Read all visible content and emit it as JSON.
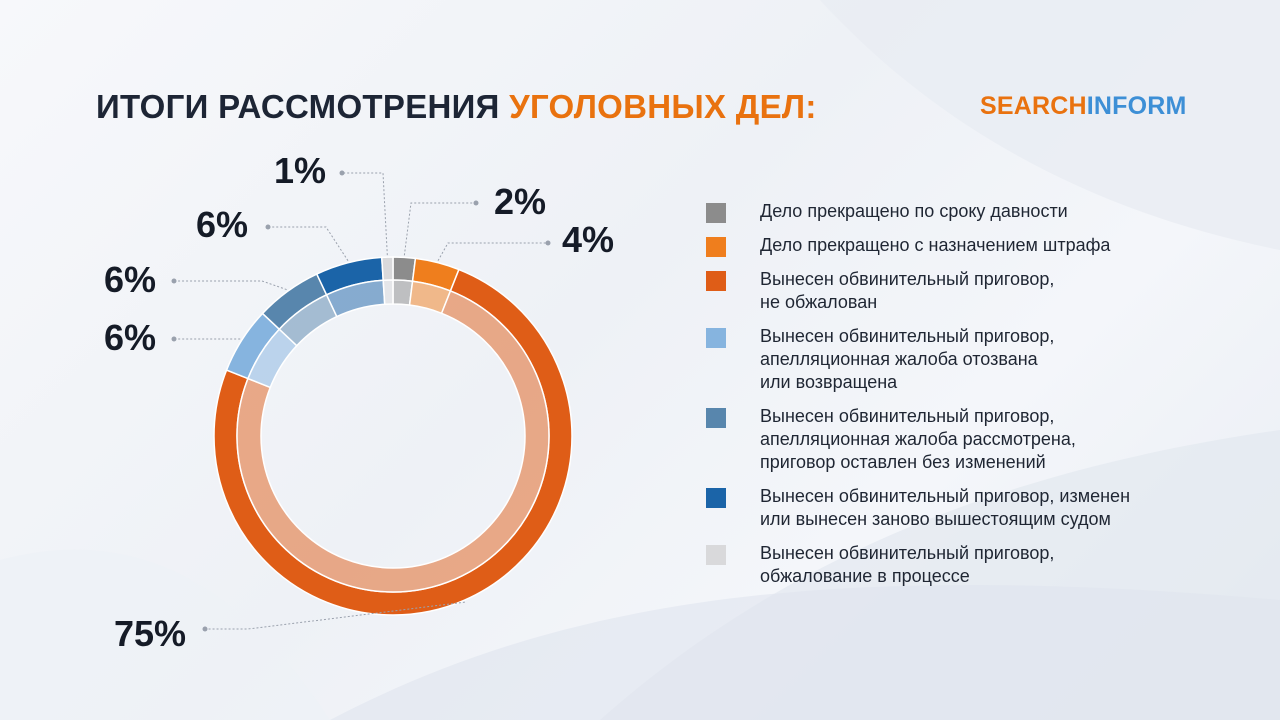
{
  "header": {
    "title_part1": "ИТОГИ РАССМОТРЕНИЯ",
    "title_part2": "УГОЛОВНЫХ ДЕЛ:"
  },
  "logo": {
    "part1": "SEARCH",
    "part2": "INFORM",
    "orange": "#e9720f",
    "blue": "#3d8fd6"
  },
  "chart_data": {
    "type": "pie",
    "variant": "donut",
    "title": "ИТОГИ РАССМОТРЕНИЯ УГОЛОВНЫХ ДЕЛ:",
    "legend_position": "right",
    "slices": [
      {
        "label": "Дело прекращено по сроку давности",
        "value": 2,
        "value_label": "2%",
        "color": "#8c8c8c"
      },
      {
        "label": "Дело прекращено с назначением штрафа",
        "value": 4,
        "value_label": "4%",
        "color": "#ef7e1d"
      },
      {
        "label": "Вынесен обвинительный приговор,\nне обжалован",
        "value": 75,
        "value_label": "75%",
        "color": "#df5d17"
      },
      {
        "label": "Вынесен обвинительный приговор,\nапелляционная жалоба отозвана\nили возвращена",
        "value": 6,
        "value_label": "6%",
        "color": "#86b4df"
      },
      {
        "label": "Вынесен обвинительный приговор,\nапелляционная жалоба рассмотрена,\nприговор оставлен без изменений",
        "value": 6,
        "value_label": "6%",
        "color": "#5886ad"
      },
      {
        "label": "Вынесен обвинительный приговор, изменен\nили вынесен заново вышестоящим судом",
        "value": 6,
        "value_label": "6%",
        "color": "#1b64a8"
      },
      {
        "label": "Вынесен обвинительный приговор,\nобжалование в процессе",
        "value": 1,
        "value_label": "1%",
        "color": "#d9d9db"
      }
    ]
  }
}
